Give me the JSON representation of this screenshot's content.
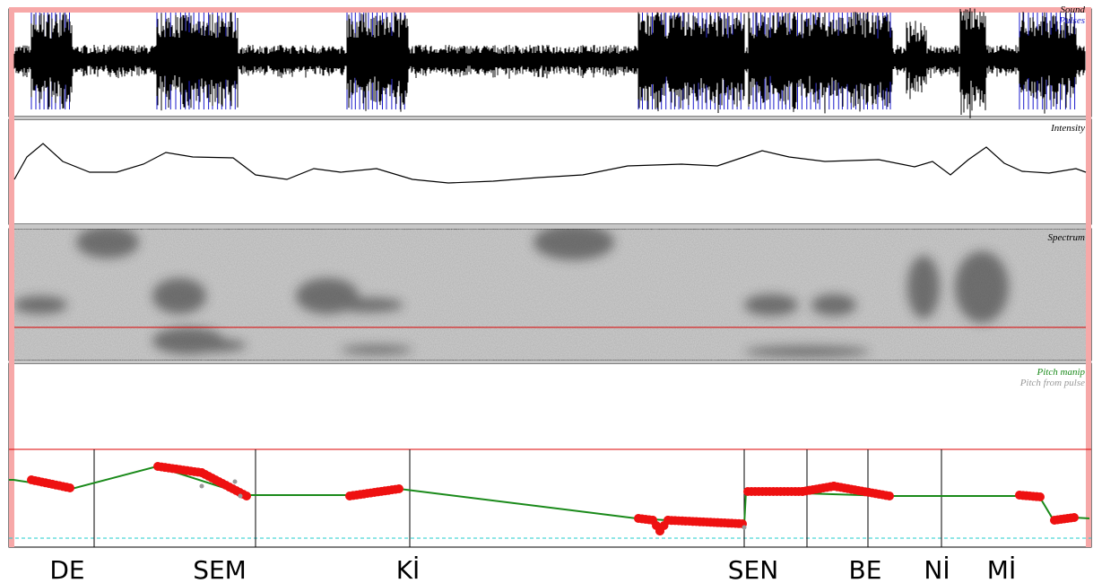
{
  "panels": {
    "sound": "Sound",
    "pulses": "Pulses",
    "intensity": "Intensity",
    "spectrum": "Spectrum",
    "pitch_manip": "Pitch manip",
    "pitch_from_pulse": "Pitch from pulse"
  },
  "syllables": [
    "DE",
    "SEM",
    "Kİ",
    "SEN",
    "BE",
    "Nİ",
    "Mİ"
  ]
}
